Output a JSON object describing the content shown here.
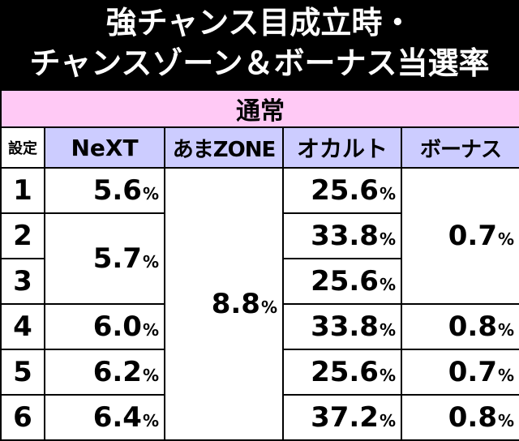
{
  "title": {
    "line1": "強チャンス目成立時・",
    "line2": "チャンスゾーン＆ボーナス当選率"
  },
  "table": {
    "mode_label": "通常",
    "columns": [
      "設定",
      "NeXT",
      "あまZONE",
      "オカルト",
      "ボーナス"
    ],
    "unit": "%",
    "rows": [
      {
        "setting": "1",
        "next": "5.6",
        "amazone": "8.8",
        "occult": "25.6",
        "bonus": "0.7"
      },
      {
        "setting": "2",
        "next": "5.7",
        "amazone": "8.8",
        "occult": "33.8",
        "bonus": "0.7"
      },
      {
        "setting": "3",
        "next": "5.7",
        "amazone": "8.8",
        "occult": "25.6",
        "bonus": "0.7"
      },
      {
        "setting": "4",
        "next": "6.0",
        "amazone": "8.8",
        "occult": "33.8",
        "bonus": "0.8"
      },
      {
        "setting": "5",
        "next": "6.2",
        "amazone": "8.8",
        "occult": "25.6",
        "bonus": "0.7"
      },
      {
        "setting": "6",
        "next": "6.4",
        "amazone": "8.8",
        "occult": "37.2",
        "bonus": "0.8"
      }
    ]
  },
  "colors": {
    "header_bg": "#000000",
    "header_text": "#ffffff",
    "mode_bg": "#ffc9f5",
    "column_header_bg": "#ccccff",
    "cell_bg": "#ffffff"
  }
}
